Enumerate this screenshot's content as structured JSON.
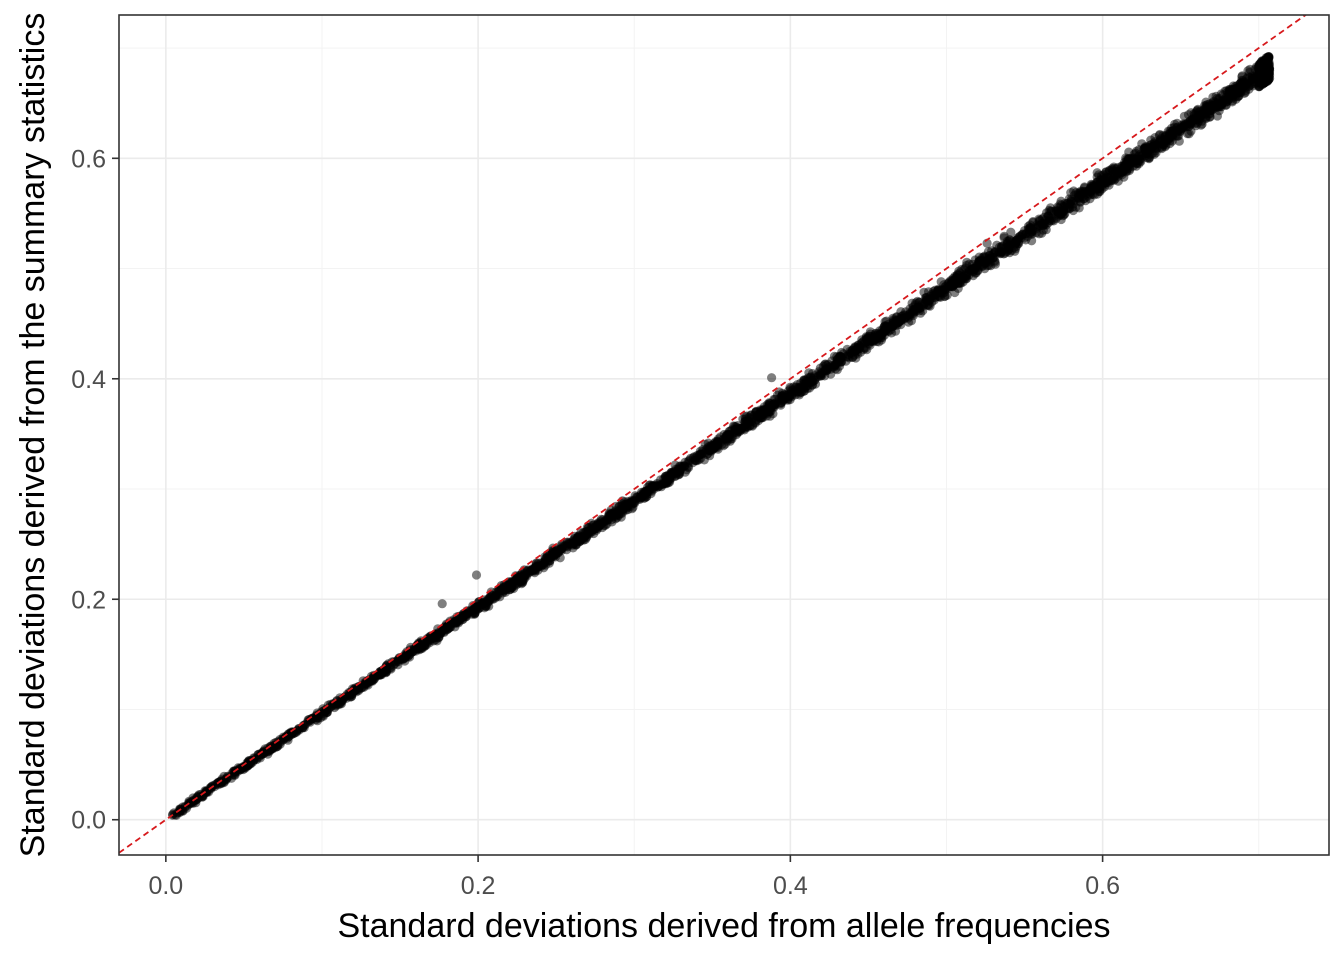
{
  "chart_data": {
    "type": "scatter",
    "title": "",
    "xlabel": "Standard deviations derived from allele frequencies",
    "ylabel": "Standard deviations derived from the summary statistics",
    "xlim": [
      -0.03,
      0.745
    ],
    "ylim": [
      -0.032,
      0.73
    ],
    "x_ticks": [
      0.0,
      0.2,
      0.4,
      0.6
    ],
    "y_ticks": [
      0.0,
      0.2,
      0.4,
      0.6
    ],
    "x_tick_labels": [
      "0.0",
      "0.2",
      "0.4",
      "0.6"
    ],
    "y_tick_labels": [
      "0.0",
      "0.2",
      "0.4",
      "0.6"
    ],
    "grid": true,
    "legend": "none",
    "reference_line": {
      "intercept": 0,
      "slope": 1,
      "style": "dashed",
      "color": "#d7191c"
    },
    "point_color": "#000000",
    "point_alpha": 0.5,
    "trend": {
      "x_min": 0.004,
      "x_max": 0.707,
      "slope": 0.965,
      "approx_n_points": 2600,
      "note": "dense band of points lying just below the y = x line"
    },
    "outliers": [
      {
        "x": 0.177,
        "y": 0.196
      },
      {
        "x": 0.199,
        "y": 0.222
      },
      {
        "x": 0.585,
        "y": 0.555
      },
      {
        "x": 0.388,
        "y": 0.401
      },
      {
        "x": 0.526,
        "y": 0.523
      }
    ],
    "colors": {
      "panel_border": "#333333",
      "grid_major": "#ebebeb",
      "grid_minor": "#f3f3f3",
      "tick_text": "#4d4d4d",
      "title_text": "#000000"
    }
  }
}
